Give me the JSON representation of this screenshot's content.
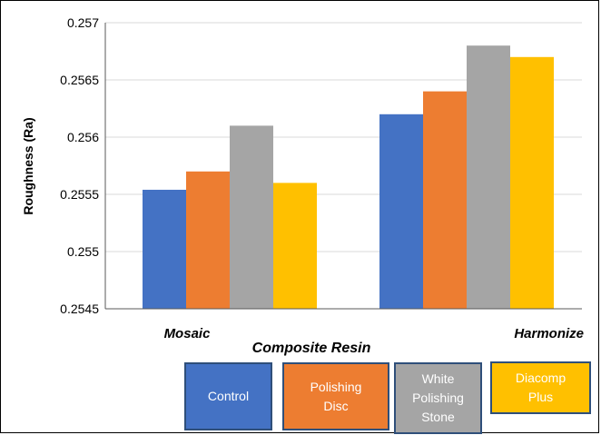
{
  "chart_data": {
    "type": "bar",
    "title": "",
    "xlabel": "Composite Resin",
    "ylabel": "Roughness (Ra)",
    "ylim": [
      0.2545,
      0.257
    ],
    "yticks": [
      "0.2545",
      "0.255",
      "0.2555",
      "0.256",
      "0.2565",
      "0.257"
    ],
    "grid": true,
    "legend_position": "bottom",
    "categories": [
      "Mosaic",
      "Harmonize"
    ],
    "series": [
      {
        "name": "Control",
        "color": "#4472c4",
        "values": [
          0.25554,
          0.2562
        ]
      },
      {
        "name": "Polishing Disc",
        "color": "#ed7d31",
        "values": [
          0.2557,
          0.2564
        ]
      },
      {
        "name": "White Polishing Stone",
        "color": "#a5a5a5",
        "values": [
          0.2561,
          0.2568
        ]
      },
      {
        "name": "Diacomp Plus",
        "color": "#ffc000",
        "values": [
          0.2556,
          0.2567
        ]
      }
    ]
  },
  "legend": {
    "items": [
      {
        "lines": [
          "Control"
        ],
        "color": "#4472c4"
      },
      {
        "lines": [
          "Polishing",
          "Disc"
        ],
        "color": "#ed7d31"
      },
      {
        "lines": [
          "White",
          "Polishing",
          "Stone"
        ],
        "color": "#a5a5a5"
      },
      {
        "lines": [
          "Diacomp",
          "Plus"
        ],
        "color": "#ffc000"
      }
    ]
  }
}
